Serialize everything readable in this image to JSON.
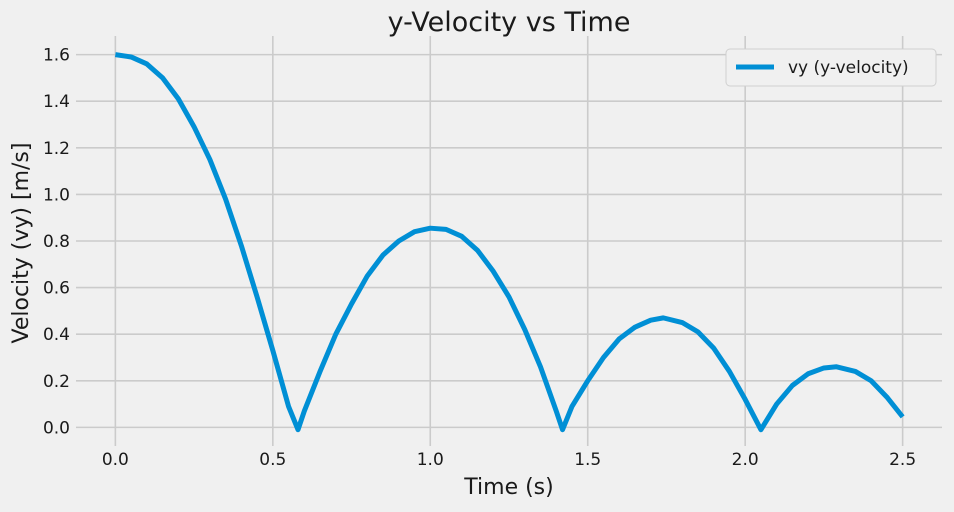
{
  "chart_data": {
    "type": "line",
    "title": "y-Velocity vs Time",
    "xlabel": "Time (s)",
    "ylabel": "Velocity (vy) [m/s]",
    "xlim": [
      -0.125,
      2.625
    ],
    "ylim": [
      -0.08,
      1.68
    ],
    "xticks": [
      0.0,
      0.5,
      1.0,
      1.5,
      2.0,
      2.5
    ],
    "xtick_labels": [
      "0.0",
      "0.5",
      "1.0",
      "1.5",
      "2.0",
      "2.5"
    ],
    "yticks": [
      0.0,
      0.2,
      0.4,
      0.6,
      0.8,
      1.0,
      1.2,
      1.4,
      1.6
    ],
    "ytick_labels": [
      "0.0",
      "0.2",
      "0.4",
      "0.6",
      "0.8",
      "1.0",
      "1.2",
      "1.4",
      "1.6"
    ],
    "grid": true,
    "legend_position": "top-right",
    "background": "#f0f0f0",
    "series": [
      {
        "name": "vy (y-velocity)",
        "color": "#008fd5",
        "points": [
          [
            0.0,
            1.6
          ],
          [
            0.05,
            1.59
          ],
          [
            0.1,
            1.56
          ],
          [
            0.15,
            1.5
          ],
          [
            0.2,
            1.41
          ],
          [
            0.25,
            1.29
          ],
          [
            0.3,
            1.15
          ],
          [
            0.35,
            0.98
          ],
          [
            0.4,
            0.78
          ],
          [
            0.45,
            0.56
          ],
          [
            0.5,
            0.33
          ],
          [
            0.55,
            0.09
          ],
          [
            0.58,
            -0.01
          ],
          [
            0.6,
            0.07
          ],
          [
            0.65,
            0.24
          ],
          [
            0.7,
            0.4
          ],
          [
            0.75,
            0.53
          ],
          [
            0.8,
            0.65
          ],
          [
            0.85,
            0.74
          ],
          [
            0.9,
            0.8
          ],
          [
            0.95,
            0.84
          ],
          [
            1.0,
            0.855
          ],
          [
            1.05,
            0.85
          ],
          [
            1.1,
            0.82
          ],
          [
            1.15,
            0.76
          ],
          [
            1.2,
            0.67
          ],
          [
            1.25,
            0.56
          ],
          [
            1.3,
            0.42
          ],
          [
            1.35,
            0.26
          ],
          [
            1.4,
            0.07
          ],
          [
            1.42,
            -0.01
          ],
          [
            1.45,
            0.09
          ],
          [
            1.5,
            0.2
          ],
          [
            1.55,
            0.3
          ],
          [
            1.6,
            0.38
          ],
          [
            1.65,
            0.43
          ],
          [
            1.7,
            0.46
          ],
          [
            1.74,
            0.47
          ],
          [
            1.8,
            0.45
          ],
          [
            1.85,
            0.41
          ],
          [
            1.9,
            0.34
          ],
          [
            1.95,
            0.24
          ],
          [
            2.0,
            0.12
          ],
          [
            2.05,
            -0.01
          ],
          [
            2.1,
            0.1
          ],
          [
            2.15,
            0.18
          ],
          [
            2.2,
            0.23
          ],
          [
            2.25,
            0.255
          ],
          [
            2.29,
            0.26
          ],
          [
            2.35,
            0.24
          ],
          [
            2.4,
            0.2
          ],
          [
            2.45,
            0.13
          ],
          [
            2.5,
            0.045
          ]
        ]
      }
    ]
  }
}
